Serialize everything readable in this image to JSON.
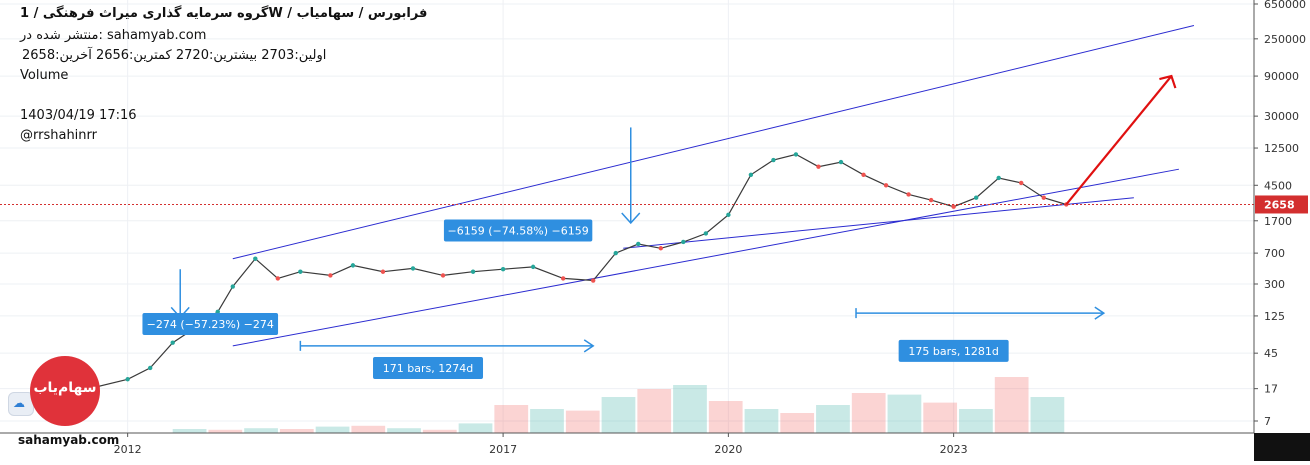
{
  "header": {
    "title": "گروه سرمایه گذاری میراث فرهنگی /  1W  /  فرابورس / سهامیاب",
    "published": "منتشر شده در: sahamyab.com",
    "ohlc": "اولین:2703  بیشترین:2720  کمترین:2656  آخرین:2658",
    "volume_label": "Volume",
    "datetime": "1403/04/19 17:16",
    "author": "@rrshahinrr"
  },
  "watermark": {
    "site": "sahamyab.com",
    "badge_text": "سهام‌یاب",
    "tv_icon": "tradingview-cloud-icon"
  },
  "chart_data": {
    "type": "line",
    "scale": "log",
    "title": "",
    "xlabel": "",
    "ylabel": "",
    "x_ticks": [
      "2012",
      "2017",
      "2020",
      "2023"
    ],
    "y_ticks": [
      650000,
      250000,
      90000,
      30000,
      12500,
      4500,
      1700,
      700,
      300,
      125,
      45,
      17,
      7
    ],
    "last_price": 2658,
    "last_price_label": "2658",
    "colors": {
      "up": "#26a69a",
      "down": "#ef5350",
      "channel": "#2b2bd0",
      "arrow": "#e01010",
      "measure": "#2f8fe0",
      "price_line": "#d32f2f"
    },
    "x_axis_range": [
      2010.3,
      2027.0
    ],
    "price_series": {
      "dates": [
        2011.0,
        2011.3,
        2011.6,
        2012.0,
        2012.3,
        2012.6,
        2012.9,
        2013.2,
        2013.4,
        2013.7,
        2014.0,
        2014.3,
        2014.7,
        2015.0,
        2015.4,
        2015.8,
        2016.2,
        2016.6,
        2017.0,
        2017.4,
        2017.8,
        2018.2,
        2018.5,
        2018.8,
        2019.1,
        2019.4,
        2019.7,
        2020.0,
        2020.3,
        2020.6,
        2020.9,
        2021.2,
        2021.5,
        2021.8,
        2022.1,
        2022.4,
        2022.7,
        2023.0,
        2023.3,
        2023.6,
        2023.9,
        2024.2,
        2024.5
      ],
      "prices": [
        20,
        25,
        18,
        22,
        30,
        60,
        90,
        140,
        280,
        600,
        350,
        420,
        380,
        500,
        420,
        460,
        380,
        420,
        450,
        480,
        350,
        330,
        700,
        900,
        800,
        950,
        1200,
        2000,
        6000,
        9000,
        10500,
        7500,
        8500,
        6000,
        4500,
        3500,
        3000,
        2500,
        3200,
        5500,
        4800,
        3200,
        2658
      ]
    },
    "channel_upper": {
      "from": [
        2013.4,
        600
      ],
      "to": [
        2026.2,
        360000
      ]
    },
    "channel_lower": {
      "from": [
        2013.4,
        55
      ],
      "to": [
        2026.0,
        7000
      ]
    },
    "lower_trend": {
      "from": [
        2018.6,
        800
      ],
      "to": [
        2025.4,
        3200
      ]
    },
    "projection_arrow": {
      "from": [
        2024.5,
        2658
      ],
      "to": [
        2025.9,
        90000
      ]
    },
    "down_arrows": [
      {
        "x": 2012.7,
        "y_top": 120,
        "y_bottom": 450
      },
      {
        "x": 2018.7,
        "y_top": 1600,
        "y_bottom": 22000
      }
    ],
    "annotations": [
      {
        "text": "−274 (−57.23%) −274",
        "x": 2013.1,
        "y": 100
      },
      {
        "text": "−6159 (−74.58%) −6159",
        "x": 2017.2,
        "y": 1300
      },
      {
        "text": "171 bars, 1274d",
        "x": 2016.0,
        "y": 30
      },
      {
        "text": "175 bars, 1281d",
        "x": 2023.0,
        "y": 48
      }
    ],
    "range_arrows": [
      {
        "from": 2014.3,
        "to": 2018.2,
        "y": 55
      },
      {
        "from": 2021.7,
        "to": 2025.0,
        "y": 135
      }
    ],
    "volume_bars": [
      0.05,
      0.04,
      0.06,
      0.05,
      0.08,
      0.09,
      0.06,
      0.04,
      0.12,
      0.35,
      0.3,
      0.28,
      0.45,
      0.55,
      0.6,
      0.4,
      0.3,
      0.25,
      0.35,
      0.5,
      0.48,
      0.38,
      0.3,
      0.7,
      0.45
    ]
  }
}
